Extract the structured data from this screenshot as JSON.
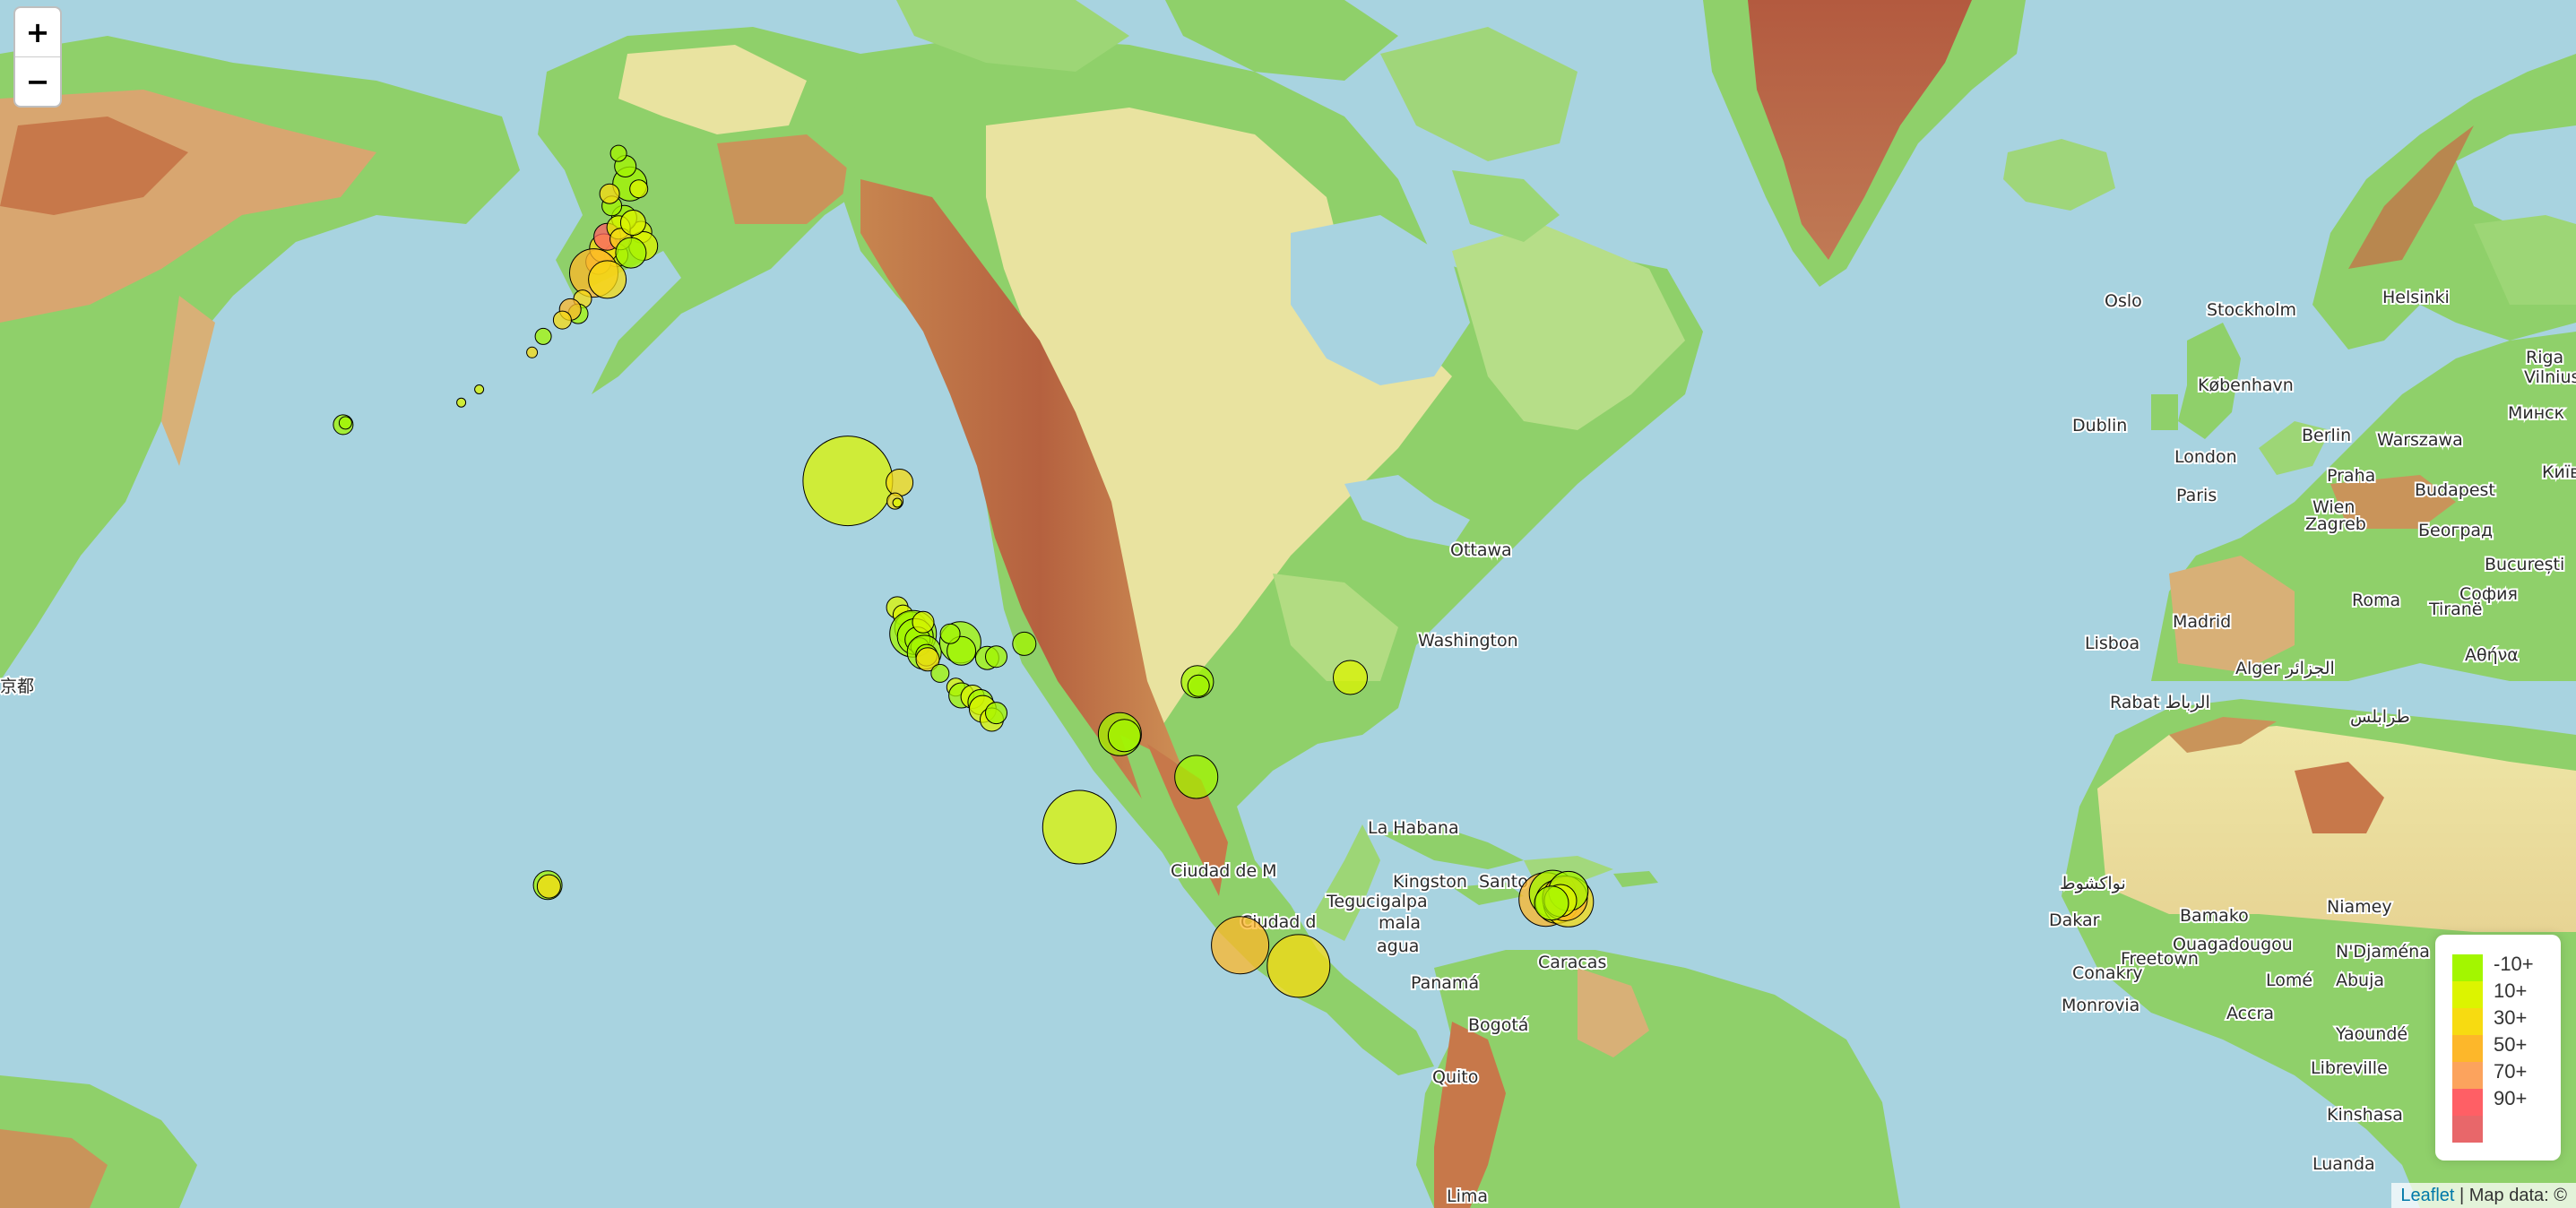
{
  "map": {
    "zoom_in_label": "+",
    "zoom_out_label": "−"
  },
  "colors": {
    "ocean": "#a8d3e0",
    "land_low": "#8fd06a",
    "land_mid": "#e9e3a0",
    "land_high": "#c8784a",
    "ice": "#b66a4e"
  },
  "places": [
    "Oslo",
    "Stockholm",
    "Helsinki",
    "Riga",
    "Vilnius",
    "København",
    "Минск",
    "Dublin",
    "London",
    "Berlin",
    "Warszawa",
    "Paris",
    "Praha",
    "Wien",
    "Budapest",
    "Київ",
    "Zagreb",
    "Београд",
    "București",
    "София",
    "Madrid",
    "Roma",
    "Tiranë",
    "Lisboa",
    "Αθήνα",
    "Alger الجزائر",
    "Rabat الرباط",
    "طرابلس",
    "نواكشوط",
    "Dakar",
    "Bamako",
    "Niamey",
    "Ouagadougou",
    "N'Djaména",
    "Conakry",
    "Freetown",
    "Monrovia",
    "Lomé",
    "Abuja",
    "Accra",
    "Yaoundé",
    "Libreville",
    "Kinshasa",
    "Luanda",
    "Ottawa",
    "Washington",
    "La Habana",
    "Kingston",
    "Santo",
    "Tegucigalpa",
    "Ciudad de M",
    "Ciudad d",
    "mala",
    "agua",
    "Panamá",
    "Caracas",
    "Bogotá",
    "Quito",
    "Lima",
    "京都"
  ],
  "earthquakes": [
    {
      "lat": 61.2,
      "lon": -147.0,
      "mag": 1.2,
      "depth": 12
    },
    {
      "lat": 61.8,
      "lon": -148.5,
      "mag": 1.4,
      "depth": 8
    },
    {
      "lat": 62.3,
      "lon": -149.6,
      "mag": 1.1,
      "depth": 5
    },
    {
      "lat": 60.6,
      "lon": -146.8,
      "mag": 1.6,
      "depth": 28
    },
    {
      "lat": 63.2,
      "lon": -148.0,
      "mag": 1.9,
      "depth": 6
    },
    {
      "lat": 60.2,
      "lon": -149.2,
      "mag": 1.3,
      "depth": 16
    },
    {
      "lat": 59.9,
      "lon": -150.8,
      "mag": 1.4,
      "depth": 52
    },
    {
      "lat": 60.5,
      "lon": -150.3,
      "mag": 1.6,
      "depth": 38
    },
    {
      "lat": 61.0,
      "lon": -150.0,
      "mag": 1.5,
      "depth": 92
    },
    {
      "lat": 61.4,
      "lon": -149.0,
      "mag": 1.3,
      "depth": 15
    },
    {
      "lat": 60.9,
      "lon": -148.8,
      "mag": 1.2,
      "depth": 35
    },
    {
      "lat": 61.6,
      "lon": -147.7,
      "mag": 1.4,
      "depth": 22
    },
    {
      "lat": 60.3,
      "lon": -147.9,
      "mag": 1.7,
      "depth": 4
    },
    {
      "lat": 59.4,
      "lon": -151.2,
      "mag": 2.7,
      "depth": 68
    },
    {
      "lat": 59.1,
      "lon": -150.0,
      "mag": 2.1,
      "depth": 33
    },
    {
      "lat": 58.2,
      "lon": -152.2,
      "mag": 1.0,
      "depth": 44
    },
    {
      "lat": 57.5,
      "lon": -152.6,
      "mag": 1.1,
      "depth": 9
    },
    {
      "lat": 57.7,
      "lon": -153.3,
      "mag": 1.2,
      "depth": 64
    },
    {
      "lat": 57.2,
      "lon": -154.0,
      "mag": 1.0,
      "depth": 40
    },
    {
      "lat": 56.4,
      "lon": -155.7,
      "mag": 0.9,
      "depth": 2
    },
    {
      "lat": 55.6,
      "lon": -156.7,
      "mag": 0.6,
      "depth": 30
    },
    {
      "lat": 53.7,
      "lon": -161.4,
      "mag": 0.4,
      "depth": 14
    },
    {
      "lat": 53.0,
      "lon": -163.0,
      "mag": 0.3,
      "depth": 11
    },
    {
      "lat": 51.8,
      "lon": -173.5,
      "mag": 1.1,
      "depth": 8
    },
    {
      "lat": 51.9,
      "lon": -173.3,
      "mag": 0.7,
      "depth": 5
    },
    {
      "lat": 63.9,
      "lon": -148.4,
      "mag": 1.2,
      "depth": 3
    },
    {
      "lat": 64.4,
      "lon": -149.0,
      "mag": 0.9,
      "depth": 7
    },
    {
      "lat": 63.0,
      "lon": -147.2,
      "mag": 1.0,
      "depth": 18
    },
    {
      "lat": 62.8,
      "lon": -149.8,
      "mag": 1.1,
      "depth": 40
    },
    {
      "lat": 48.6,
      "lon": -128.6,
      "mag": 5.0,
      "depth": 10
    },
    {
      "lat": 48.5,
      "lon": -124.0,
      "mag": 1.5,
      "depth": 34
    },
    {
      "lat": 47.4,
      "lon": -124.4,
      "mag": 0.9,
      "depth": 44
    },
    {
      "lat": 47.3,
      "lon": -124.2,
      "mag": 0.5,
      "depth": 26
    },
    {
      "lat": 40.6,
      "lon": -124.2,
      "mag": 1.2,
      "depth": 16
    },
    {
      "lat": 40.1,
      "lon": -123.7,
      "mag": 1.1,
      "depth": 12
    },
    {
      "lat": 39.2,
      "lon": -123.0,
      "mag": 1.8,
      "depth": 4
    },
    {
      "lat": 38.8,
      "lon": -122.8,
      "mag": 2.6,
      "depth": 3
    },
    {
      "lat": 38.6,
      "lon": -122.6,
      "mag": 2.0,
      "depth": 5
    },
    {
      "lat": 38.4,
      "lon": -122.4,
      "mag": 1.4,
      "depth": 7
    },
    {
      "lat": 37.9,
      "lon": -122.2,
      "mag": 1.0,
      "depth": 9
    },
    {
      "lat": 37.5,
      "lon": -121.8,
      "mag": 1.9,
      "depth": 6
    },
    {
      "lat": 37.3,
      "lon": -121.6,
      "mag": 1.2,
      "depth": 8
    },
    {
      "lat": 37.0,
      "lon": -121.5,
      "mag": 1.3,
      "depth": 35
    },
    {
      "lat": 39.6,
      "lon": -121.9,
      "mag": 1.2,
      "depth": 12
    },
    {
      "lat": 38.2,
      "lon": -118.6,
      "mag": 2.3,
      "depth": 5
    },
    {
      "lat": 37.6,
      "lon": -118.5,
      "mag": 1.6,
      "depth": 7
    },
    {
      "lat": 38.8,
      "lon": -119.5,
      "mag": 1.1,
      "depth": 8
    },
    {
      "lat": 37.1,
      "lon": -116.2,
      "mag": 1.3,
      "depth": 4
    },
    {
      "lat": 37.2,
      "lon": -115.4,
      "mag": 1.2,
      "depth": 6
    },
    {
      "lat": 38.1,
      "lon": -112.9,
      "mag": 1.3,
      "depth": 3
    },
    {
      "lat": 36.0,
      "lon": -120.4,
      "mag": 1.0,
      "depth": 9
    },
    {
      "lat": 35.0,
      "lon": -119.0,
      "mag": 1.0,
      "depth": 12
    },
    {
      "lat": 34.4,
      "lon": -118.5,
      "mag": 1.4,
      "depth": 8
    },
    {
      "lat": 34.3,
      "lon": -117.5,
      "mag": 1.3,
      "depth": 11
    },
    {
      "lat": 33.9,
      "lon": -116.8,
      "mag": 1.4,
      "depth": 9
    },
    {
      "lat": 33.4,
      "lon": -116.6,
      "mag": 1.5,
      "depth": 12
    },
    {
      "lat": 32.6,
      "lon": -115.8,
      "mag": 1.3,
      "depth": 10
    },
    {
      "lat": 33.1,
      "lon": -115.4,
      "mag": 1.2,
      "depth": 5
    },
    {
      "lat": 31.5,
      "lon": -104.4,
      "mag": 2.4,
      "depth": 6
    },
    {
      "lat": 31.4,
      "lon": -104.0,
      "mag": 1.8,
      "depth": 4
    },
    {
      "lat": 35.4,
      "lon": -97.5,
      "mag": 1.8,
      "depth": 5
    },
    {
      "lat": 35.1,
      "lon": -97.4,
      "mag": 1.2,
      "depth": 8
    },
    {
      "lat": 35.7,
      "lon": -83.9,
      "mag": 1.9,
      "depth": 10
    },
    {
      "lat": 28.2,
      "lon": -97.6,
      "mag": 2.4,
      "depth": 3
    },
    {
      "lat": 24.2,
      "lon": -108.0,
      "mag": 4.1,
      "depth": 10
    },
    {
      "lat": 14.3,
      "lon": -93.7,
      "mag": 3.2,
      "depth": 62
    },
    {
      "lat": 12.5,
      "lon": -88.5,
      "mag": 3.5,
      "depth": 35
    },
    {
      "lat": 18.2,
      "lon": -66.5,
      "mag": 3.0,
      "depth": 65
    },
    {
      "lat": 18.7,
      "lon": -65.9,
      "mag": 2.6,
      "depth": 8
    },
    {
      "lat": 18.0,
      "lon": -65.5,
      "mag": 2.4,
      "depth": 12
    },
    {
      "lat": 18.0,
      "lon": -64.5,
      "mag": 2.8,
      "depth": 35
    },
    {
      "lat": 18.3,
      "lon": -64.8,
      "mag": 2.5,
      "depth": 55
    },
    {
      "lat": 18.9,
      "lon": -64.5,
      "mag": 2.2,
      "depth": 9
    },
    {
      "lat": 18.1,
      "lon": -65.2,
      "mag": 1.8,
      "depth": 14
    },
    {
      "lat": 17.9,
      "lon": -66.0,
      "mag": 1.9,
      "depth": 3
    },
    {
      "lat": 19.4,
      "lon": -155.3,
      "mag": 1.6,
      "depth": 5
    },
    {
      "lat": 19.3,
      "lon": -155.2,
      "mag": 1.3,
      "depth": 32
    }
  ],
  "legend": {
    "items": [
      {
        "label": "-10+",
        "color": "#a3f600"
      },
      {
        "label": "10+",
        "color": "#dcf400"
      },
      {
        "label": "30+",
        "color": "#f7db11"
      },
      {
        "label": "50+",
        "color": "#fdb72a"
      },
      {
        "label": "70+",
        "color": "#fca35d"
      },
      {
        "label": "90+",
        "color": "#ff5f65"
      },
      {
        "label": "",
        "color": "#e8676a"
      }
    ]
  },
  "attribution": {
    "link": "Leaflet",
    "text": " | Map data: ©"
  }
}
